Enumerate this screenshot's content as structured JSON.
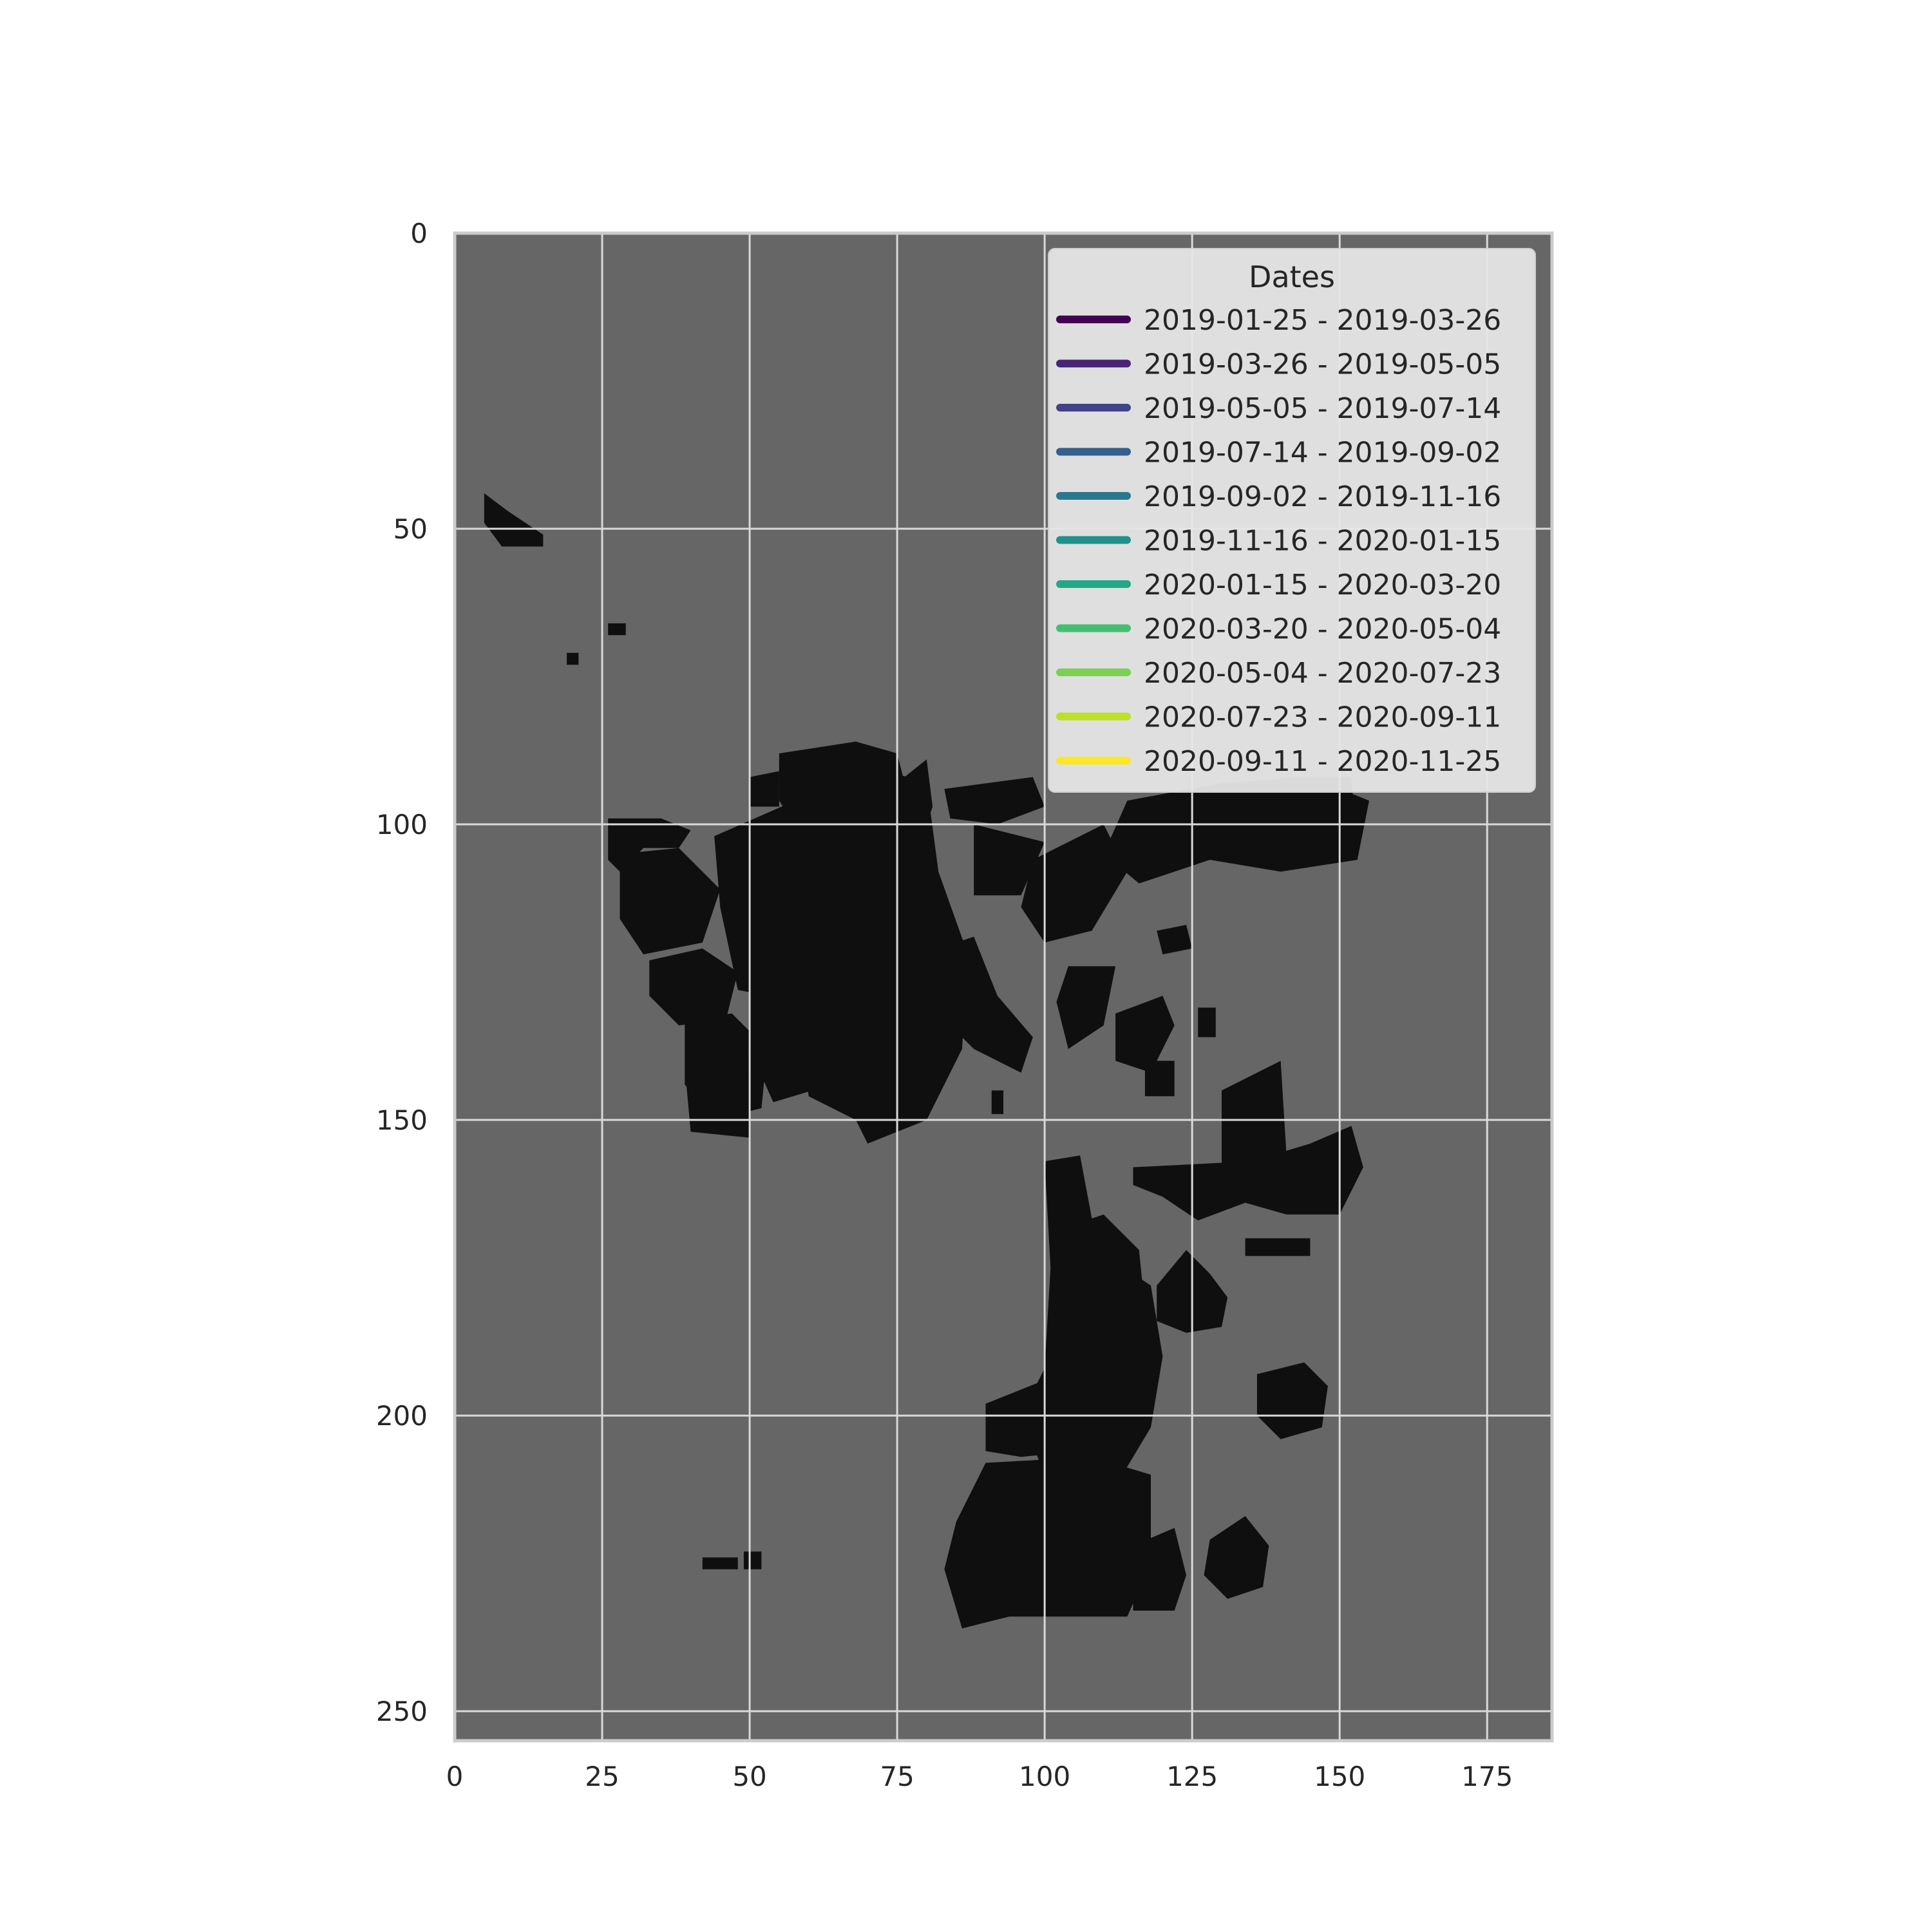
{
  "chart_data": {
    "type": "heatmap",
    "title": "",
    "xlabel": "",
    "ylabel": "",
    "xlim": [
      0,
      186
    ],
    "ylim": [
      255,
      0
    ],
    "xticks": [
      0,
      25,
      50,
      75,
      100,
      125,
      150,
      175
    ],
    "yticks": [
      0,
      50,
      100,
      150,
      200,
      250
    ],
    "grid": true,
    "background": "#666666",
    "legend": {
      "title": "Dates",
      "placement": "top-right",
      "entries": [
        {
          "label": "2019-01-25 - 2019-03-26",
          "color": "#440154"
        },
        {
          "label": "2019-03-26 - 2019-05-05",
          "color": "#482475"
        },
        {
          "label": "2019-05-05 - 2019-07-14",
          "color": "#414487"
        },
        {
          "label": "2019-07-14 - 2019-09-02",
          "color": "#355f8d"
        },
        {
          "label": "2019-09-02 - 2019-11-16",
          "color": "#2a788e"
        },
        {
          "label": "2019-11-16 - 2020-01-15",
          "color": "#21918c"
        },
        {
          "label": "2020-01-15 - 2020-03-20",
          "color": "#22a884"
        },
        {
          "label": "2020-03-20 - 2020-05-04",
          "color": "#44bf70"
        },
        {
          "label": "2020-05-04 - 2020-07-23",
          "color": "#7ad151"
        },
        {
          "label": "2020-07-23 - 2020-09-11",
          "color": "#bddf26"
        },
        {
          "label": "2020-09-11 - 2020-11-25",
          "color": "#fde725"
        }
      ]
    },
    "regions": [
      {
        "date_index": 5,
        "polygon": [
          [
            5,
            44
          ],
          [
            9,
            47
          ],
          [
            15,
            51
          ],
          [
            15,
            53
          ],
          [
            8,
            53
          ],
          [
            5,
            49
          ]
        ]
      },
      {
        "date_index": 2,
        "polygon": [
          [
            26,
            99
          ],
          [
            35,
            99
          ],
          [
            40,
            101
          ],
          [
            38,
            104
          ],
          [
            32,
            104
          ],
          [
            28,
            108
          ],
          [
            26,
            106
          ]
        ]
      },
      {
        "date_index": 1,
        "polygon": [
          [
            28,
            105
          ],
          [
            38,
            104
          ],
          [
            45,
            111
          ],
          [
            42,
            120
          ],
          [
            32,
            122
          ],
          [
            28,
            116
          ]
        ]
      },
      {
        "date_index": 5,
        "polygon": [
          [
            33,
            123
          ],
          [
            42,
            121
          ],
          [
            48,
            125
          ],
          [
            46,
            133
          ],
          [
            38,
            134
          ],
          [
            33,
            129
          ]
        ]
      },
      {
        "date_index": 4,
        "polygon": [
          [
            39,
            133
          ],
          [
            47,
            132
          ],
          [
            53,
            138
          ],
          [
            52,
            148
          ],
          [
            44,
            150
          ],
          [
            39,
            144
          ]
        ]
      },
      {
        "date_index": 10,
        "polygon": [
          [
            39,
            141
          ],
          [
            50,
            142
          ],
          [
            50,
            153
          ],
          [
            40,
            152
          ]
        ]
      },
      {
        "date_index": 1,
        "polygon": [
          [
            44,
            102
          ],
          [
            60,
            95
          ],
          [
            70,
            98
          ],
          [
            72,
            110
          ],
          [
            68,
            124
          ],
          [
            58,
            130
          ],
          [
            48,
            128
          ],
          [
            45,
            114
          ]
        ]
      },
      {
        "date_index": 2,
        "polygon": [
          [
            50,
            126
          ],
          [
            64,
            122
          ],
          [
            68,
            132
          ],
          [
            64,
            144
          ],
          [
            54,
            147
          ],
          [
            50,
            138
          ]
        ]
      },
      {
        "date_index": 4,
        "polygon": [
          [
            55,
            88
          ],
          [
            68,
            86
          ],
          [
            75,
            88
          ],
          [
            78,
            100
          ],
          [
            70,
            106
          ],
          [
            60,
            104
          ],
          [
            55,
            96
          ]
        ]
      },
      {
        "date_index": 6,
        "polygon": [
          [
            70,
            90
          ],
          [
            80,
            93
          ],
          [
            82,
            108
          ],
          [
            87,
            122
          ],
          [
            86,
            138
          ],
          [
            80,
            150
          ],
          [
            70,
            154
          ],
          [
            66,
            146
          ],
          [
            68,
            128
          ],
          [
            66,
            110
          ]
        ]
      },
      {
        "date_index": 5,
        "polygon": [
          [
            60,
            118
          ],
          [
            72,
            113
          ],
          [
            78,
            126
          ],
          [
            76,
            142
          ],
          [
            68,
            150
          ],
          [
            60,
            146
          ],
          [
            58,
            132
          ]
        ]
      },
      {
        "date_index": 1,
        "polygon": [
          [
            63,
            123
          ],
          [
            72,
            122
          ],
          [
            73,
            133
          ],
          [
            64,
            134
          ]
        ]
      },
      {
        "date_index": 10,
        "polygon": [
          [
            75,
            93
          ],
          [
            80,
            89
          ],
          [
            81,
            97
          ],
          [
            78,
            106
          ],
          [
            74,
            104
          ]
        ]
      },
      {
        "date_index": 10,
        "polygon": [
          [
            50,
            92
          ],
          [
            55,
            91
          ],
          [
            55,
            97
          ],
          [
            50,
            97
          ]
        ]
      },
      {
        "date_index": 10,
        "polygon": [
          [
            55,
            89
          ],
          [
            61,
            88
          ],
          [
            61,
            93
          ],
          [
            55,
            93
          ]
        ]
      },
      {
        "date_index": 10,
        "polygon": [
          [
            72,
            143
          ],
          [
            77,
            143
          ],
          [
            77,
            146
          ],
          [
            72,
            146
          ]
        ]
      },
      {
        "date_index": 2,
        "polygon": [
          [
            82,
            121
          ],
          [
            88,
            119
          ],
          [
            92,
            129
          ],
          [
            98,
            136
          ],
          [
            96,
            142
          ],
          [
            88,
            138
          ],
          [
            82,
            132
          ]
        ]
      },
      {
        "date_index": 1,
        "polygon": [
          [
            83,
            94
          ],
          [
            98,
            92
          ],
          [
            100,
            97
          ],
          [
            92,
            100
          ],
          [
            84,
            99
          ]
        ]
      },
      {
        "date_index": 4,
        "polygon": [
          [
            88,
            100
          ],
          [
            100,
            103
          ],
          [
            96,
            112
          ],
          [
            88,
            112
          ]
        ]
      },
      {
        "date_index": 5,
        "polygon": [
          [
            98,
            106
          ],
          [
            110,
            100
          ],
          [
            114,
            108
          ],
          [
            108,
            118
          ],
          [
            100,
            120
          ],
          [
            96,
            114
          ]
        ]
      },
      {
        "date_index": 2,
        "polygon": [
          [
            104,
            124
          ],
          [
            112,
            124
          ],
          [
            110,
            134
          ],
          [
            104,
            138
          ],
          [
            102,
            130
          ]
        ]
      },
      {
        "date_index": 4,
        "polygon": [
          [
            110,
            105
          ],
          [
            114,
            96
          ],
          [
            130,
            93
          ],
          [
            145,
            92
          ],
          [
            155,
            96
          ],
          [
            153,
            106
          ],
          [
            140,
            108
          ],
          [
            128,
            106
          ],
          [
            116,
            110
          ]
        ]
      },
      {
        "date_index": 2,
        "polygon": [
          [
            140,
            92
          ],
          [
            152,
            92
          ],
          [
            153,
            106
          ],
          [
            142,
            106
          ]
        ]
      },
      {
        "date_index": 10,
        "polygon": [
          [
            119,
            118
          ],
          [
            124,
            117
          ],
          [
            125,
            121
          ],
          [
            120,
            122
          ]
        ]
      },
      {
        "date_index": 2,
        "polygon": [
          [
            112,
            132
          ],
          [
            120,
            129
          ],
          [
            122,
            134
          ],
          [
            118,
            142
          ],
          [
            112,
            140
          ]
        ]
      },
      {
        "date_index": 10,
        "polygon": [
          [
            117,
            140
          ],
          [
            122,
            140
          ],
          [
            122,
            146
          ],
          [
            117,
            146
          ]
        ]
      },
      {
        "date_index": 10,
        "polygon": [
          [
            116,
            133
          ],
          [
            119,
            132
          ],
          [
            120,
            135
          ],
          [
            116,
            136
          ]
        ]
      },
      {
        "date_index": 10,
        "polygon": [
          [
            126,
            131
          ],
          [
            129,
            131
          ],
          [
            129,
            136
          ],
          [
            126,
            136
          ]
        ]
      },
      {
        "date_index": 5,
        "polygon": [
          [
            130,
            145
          ],
          [
            140,
            140
          ],
          [
            141,
            156
          ],
          [
            135,
            162
          ],
          [
            130,
            158
          ]
        ]
      },
      {
        "date_index": 2,
        "polygon": [
          [
            115,
            158
          ],
          [
            135,
            157
          ],
          [
            145,
            154
          ],
          [
            152,
            151
          ],
          [
            154,
            158
          ],
          [
            150,
            166
          ],
          [
            141,
            166
          ],
          [
            134,
            164
          ],
          [
            126,
            167
          ],
          [
            120,
            163
          ],
          [
            115,
            161
          ]
        ]
      },
      {
        "date_index": 4,
        "polygon": [
          [
            100,
            157
          ],
          [
            106,
            156
          ],
          [
            109,
            172
          ],
          [
            118,
            178
          ],
          [
            120,
            190
          ],
          [
            118,
            202
          ],
          [
            112,
            212
          ],
          [
            100,
            210
          ],
          [
            96,
            200
          ],
          [
            100,
            192
          ],
          [
            101,
            175
          ]
        ]
      },
      {
        "date_index": 8,
        "polygon": [
          [
            104,
            168
          ],
          [
            110,
            166
          ],
          [
            116,
            172
          ],
          [
            117,
            182
          ],
          [
            112,
            192
          ],
          [
            108,
            198
          ],
          [
            103,
            194
          ],
          [
            106,
            184
          ],
          [
            104,
            176
          ]
        ]
      },
      {
        "date_index": 10,
        "polygon": [
          [
            119,
            178
          ],
          [
            124,
            172
          ],
          [
            128,
            176
          ],
          [
            131,
            180
          ],
          [
            130,
            185
          ],
          [
            124,
            186
          ],
          [
            119,
            184
          ]
        ]
      },
      {
        "date_index": 6,
        "polygon": [
          [
            90,
            198
          ],
          [
            100,
            194
          ],
          [
            110,
            197
          ],
          [
            115,
            204
          ],
          [
            106,
            206
          ],
          [
            96,
            207
          ],
          [
            90,
            206
          ]
        ]
      },
      {
        "date_index": 8,
        "polygon": [
          [
            90,
            208
          ],
          [
            108,
            207
          ],
          [
            118,
            210
          ],
          [
            118,
            225
          ],
          [
            114,
            234
          ],
          [
            94,
            234
          ],
          [
            86,
            236
          ],
          [
            83,
            226
          ],
          [
            85,
            218
          ]
        ]
      },
      {
        "date_index": 10,
        "polygon": [
          [
            115,
            222
          ],
          [
            122,
            219
          ],
          [
            124,
            227
          ],
          [
            122,
            233
          ],
          [
            115,
            233
          ]
        ]
      },
      {
        "date_index": 2,
        "polygon": [
          [
            128,
            221
          ],
          [
            134,
            217
          ],
          [
            138,
            222
          ],
          [
            137,
            229
          ],
          [
            131,
            231
          ],
          [
            127,
            227
          ]
        ]
      },
      {
        "date_index": 5,
        "polygon": [
          [
            131,
            224
          ],
          [
            135,
            224
          ],
          [
            135,
            228
          ],
          [
            131,
            228
          ]
        ]
      },
      {
        "date_index": 2,
        "polygon": [
          [
            136,
            193
          ],
          [
            144,
            191
          ],
          [
            148,
            195
          ],
          [
            147,
            202
          ],
          [
            140,
            204
          ],
          [
            136,
            200
          ]
        ]
      },
      {
        "date_index": 5,
        "polygon": [
          [
            140,
            195
          ],
          [
            145,
            195
          ],
          [
            145,
            200
          ],
          [
            140,
            200
          ]
        ]
      },
      {
        "date_index": 6,
        "polygon": [
          [
            134,
            170
          ],
          [
            145,
            170
          ],
          [
            145,
            173
          ],
          [
            134,
            173
          ]
        ]
      },
      {
        "date_index": 5,
        "polygon": [
          [
            42,
            224
          ],
          [
            48,
            224
          ],
          [
            48,
            226
          ],
          [
            42,
            226
          ]
        ]
      },
      {
        "date_index": 5,
        "polygon": [
          [
            49,
            223
          ],
          [
            52,
            223
          ],
          [
            52,
            226
          ],
          [
            49,
            226
          ]
        ]
      },
      {
        "date_index": 2,
        "polygon": [
          [
            26,
            66
          ],
          [
            29,
            66
          ],
          [
            29,
            68
          ],
          [
            26,
            68
          ]
        ]
      },
      {
        "date_index": 5,
        "polygon": [
          [
            19,
            71
          ],
          [
            21,
            71
          ],
          [
            21,
            73
          ],
          [
            19,
            73
          ]
        ]
      },
      {
        "date_index": 2,
        "polygon": [
          [
            91,
            145
          ],
          [
            93,
            145
          ],
          [
            93,
            149
          ],
          [
            91,
            149
          ]
        ]
      }
    ]
  }
}
